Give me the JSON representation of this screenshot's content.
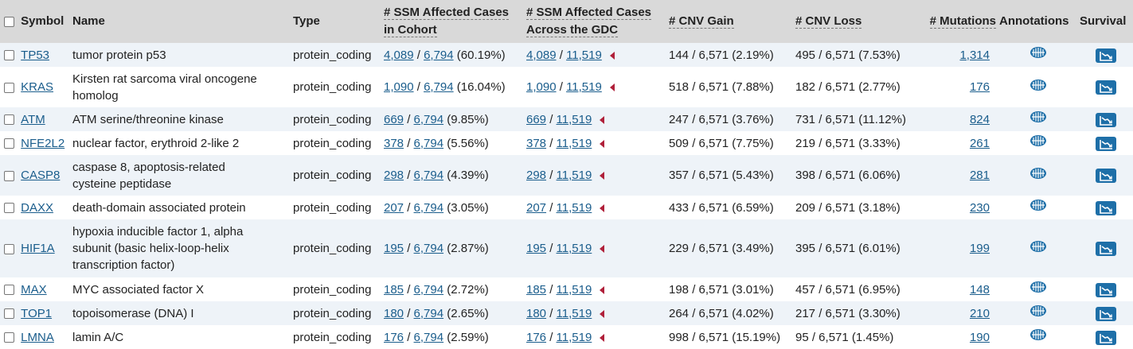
{
  "headers": {
    "symbol": "Symbol",
    "name": "Name",
    "type": "Type",
    "ssm_cohort_line1": "# SSM Affected Cases",
    "ssm_cohort_line2": "in Cohort",
    "ssm_gdc_line1": "# SSM Affected Cases",
    "ssm_gdc_line2": "Across the GDC",
    "cnv_gain": "# CNV Gain",
    "cnv_loss": "# CNV Loss",
    "mutations": "# Mutations",
    "annotations": "Annotations",
    "survival": "Survival"
  },
  "sep": "/",
  "rows": [
    {
      "symbol": "TP53",
      "name_lines": [
        "tumor protein p53"
      ],
      "type": "protein_coding",
      "c_n": "4,089",
      "c_d": "6,794",
      "c_p": "(60.19%)",
      "g_n": "4,089",
      "g_d": "11,519",
      "cnv_gain": "144 / 6,571 (2.19%)",
      "cnv_loss": "495 / 6,571 (7.53%)",
      "mutations": "1,314"
    },
    {
      "symbol": "KRAS",
      "name_lines": [
        "Kirsten rat sarcoma viral oncogene",
        "homolog"
      ],
      "type": "protein_coding",
      "c_n": "1,090",
      "c_d": "6,794",
      "c_p": "(16.04%)",
      "g_n": "1,090",
      "g_d": "11,519",
      "cnv_gain": "518 / 6,571 (7.88%)",
      "cnv_loss": "182 / 6,571 (2.77%)",
      "mutations": "176"
    },
    {
      "symbol": "ATM",
      "name_lines": [
        "ATM serine/threonine kinase"
      ],
      "type": "protein_coding",
      "c_n": "669",
      "c_d": "6,794",
      "c_p": "(9.85%)",
      "g_n": "669",
      "g_d": "11,519",
      "cnv_gain": "247 / 6,571 (3.76%)",
      "cnv_loss": "731 / 6,571 (11.12%)",
      "mutations": "824"
    },
    {
      "symbol": "NFE2L2",
      "name_lines": [
        "nuclear factor, erythroid 2-like 2"
      ],
      "type": "protein_coding",
      "c_n": "378",
      "c_d": "6,794",
      "c_p": "(5.56%)",
      "g_n": "378",
      "g_d": "11,519",
      "cnv_gain": "509 / 6,571 (7.75%)",
      "cnv_loss": "219 / 6,571 (3.33%)",
      "mutations": "261"
    },
    {
      "symbol": "CASP8",
      "name_lines": [
        "caspase 8, apoptosis-related",
        "cysteine peptidase"
      ],
      "type": "protein_coding",
      "c_n": "298",
      "c_d": "6,794",
      "c_p": "(4.39%)",
      "g_n": "298",
      "g_d": "11,519",
      "cnv_gain": "357 / 6,571 (5.43%)",
      "cnv_loss": "398 / 6,571 (6.06%)",
      "mutations": "281"
    },
    {
      "symbol": "DAXX",
      "name_lines": [
        "death-domain associated protein"
      ],
      "type": "protein_coding",
      "c_n": "207",
      "c_d": "6,794",
      "c_p": "(3.05%)",
      "g_n": "207",
      "g_d": "11,519",
      "cnv_gain": "433 / 6,571 (6.59%)",
      "cnv_loss": "209 / 6,571 (3.18%)",
      "mutations": "230"
    },
    {
      "symbol": "HIF1A",
      "name_lines": [
        "hypoxia inducible factor 1, alpha",
        "subunit (basic helix-loop-helix",
        "transcription factor)"
      ],
      "type": "protein_coding",
      "c_n": "195",
      "c_d": "6,794",
      "c_p": "(2.87%)",
      "g_n": "195",
      "g_d": "11,519",
      "cnv_gain": "229 / 6,571 (3.49%)",
      "cnv_loss": "395 / 6,571 (6.01%)",
      "mutations": "199"
    },
    {
      "symbol": "MAX",
      "name_lines": [
        "MYC associated factor X"
      ],
      "type": "protein_coding",
      "c_n": "185",
      "c_d": "6,794",
      "c_p": "(2.72%)",
      "g_n": "185",
      "g_d": "11,519",
      "cnv_gain": "198 / 6,571 (3.01%)",
      "cnv_loss": "457 / 6,571 (6.95%)",
      "mutations": "148"
    },
    {
      "symbol": "TOP1",
      "name_lines": [
        "topoisomerase (DNA) I"
      ],
      "type": "protein_coding",
      "c_n": "180",
      "c_d": "6,794",
      "c_p": "(2.65%)",
      "g_n": "180",
      "g_d": "11,519",
      "cnv_gain": "264 / 6,571 (4.02%)",
      "cnv_loss": "217 / 6,571 (3.30%)",
      "mutations": "210"
    },
    {
      "symbol": "LMNA",
      "name_lines": [
        "lamin A/C"
      ],
      "type": "protein_coding",
      "c_n": "176",
      "c_d": "6,794",
      "c_p": "(2.59%)",
      "g_n": "176",
      "g_d": "11,519",
      "cnv_gain": "998 / 6,571 (15.19%)",
      "cnv_loss": "95 / 6,571 (1.45%)",
      "mutations": "190"
    }
  ],
  "icons": {
    "annotation": "annotation-icon",
    "survival": "survival-plot-icon",
    "gdc_indicator": "triangle-left-icon",
    "checkbox": "checkbox-icon"
  },
  "colors": {
    "header_bg": "#d9d9d9",
    "row_odd": "#eef3f8",
    "row_even": "#ffffff",
    "link": "#1a5d8c",
    "triangle": "#b0203a",
    "survival_btn": "#1e6fa8"
  }
}
